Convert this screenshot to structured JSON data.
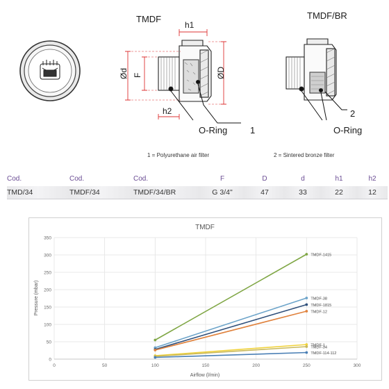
{
  "drawing": {
    "label_left": "TMDF",
    "label_right": "TMDF/BR",
    "dim_h1": "h1",
    "dim_h2": "h2",
    "dim_phi_d": "Ød",
    "dim_F": "F",
    "dim_phi_D": "ØD",
    "o_ring_left": "O-Ring",
    "callout_1": "1",
    "o_ring_right": "O-Ring",
    "callout_2": "2",
    "note_1": "1 = Polyurethane air filter",
    "note_2": "2 = Sintered bronze filter"
  },
  "table": {
    "headers": [
      "Cod.",
      "Cod.",
      "Cod.",
      "F",
      "D",
      "d",
      "h1",
      "h2"
    ],
    "row": [
      "TMD/34",
      "TMDF/34",
      "TMDF/34/BR",
      "G 3/4\"",
      "47",
      "33",
      "22",
      "12"
    ]
  },
  "colors": {
    "header_text": "#6a4c93",
    "line_1415": "#7fa644",
    "line_38": "#6ba3c9",
    "line_1815": "#2f4f7a",
    "line_12": "#e0823d",
    "line_1": "#f0d23c",
    "line_34": "#c8b85a",
    "line_114112": "#4a7fb5"
  },
  "chart_data": {
    "type": "line",
    "title": "TMDF",
    "xlabel": "Airflow (l/min)",
    "ylabel": "Pressure (mbar)",
    "xlim": [
      0,
      300
    ],
    "ylim": [
      0,
      350
    ],
    "xticks": [
      0,
      50,
      100,
      150,
      200,
      250,
      300
    ],
    "yticks": [
      0,
      50,
      100,
      150,
      200,
      250,
      300,
      350
    ],
    "grid": true,
    "legend": "inline-right",
    "series": [
      {
        "name": "TMDF-1415",
        "color": "#7fa644",
        "x": [
          100,
          250
        ],
        "y": [
          55,
          302
        ]
      },
      {
        "name": "TMDF-38",
        "color": "#6ba3c9",
        "x": [
          100,
          250
        ],
        "y": [
          33,
          176
        ]
      },
      {
        "name": "TMDF-1815",
        "color": "#2f4f7a",
        "x": [
          100,
          250
        ],
        "y": [
          28,
          157
        ]
      },
      {
        "name": "TMDF-12",
        "color": "#e0823d",
        "x": [
          100,
          250
        ],
        "y": [
          26,
          138
        ]
      },
      {
        "name": "TMDF-1",
        "color": "#f0d23c",
        "x": [
          100,
          250
        ],
        "y": [
          10,
          42
        ]
      },
      {
        "name": "TMDF-34",
        "color": "#c8b85a",
        "x": [
          100,
          250
        ],
        "y": [
          8,
          36
        ]
      },
      {
        "name": "TMDF-114-112",
        "color": "#4a7fb5",
        "x": [
          100,
          250
        ],
        "y": [
          5,
          19
        ]
      }
    ]
  }
}
